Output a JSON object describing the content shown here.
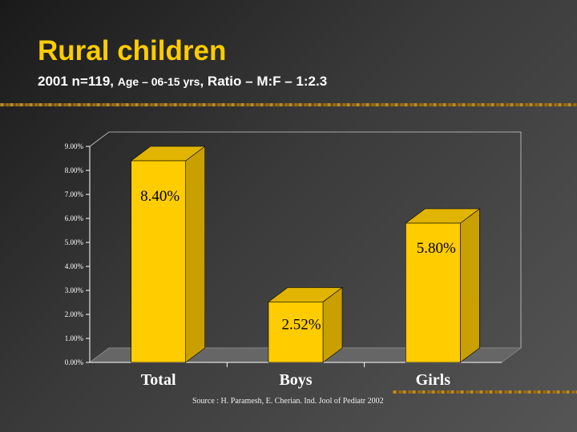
{
  "header": {
    "title": "Rural children",
    "subtitle_parts": [
      "2001 n=119, ",
      "Age – 06-15 yrs",
      ", Ratio – M:F – 1:2.3"
    ]
  },
  "colors": {
    "bar_front": "#ffcc00",
    "bar_side": "#c9a000",
    "bar_top": "#e0b400",
    "floor": "#666666",
    "axis": "#ffffff",
    "accent": "#ffcc00"
  },
  "chart_data": {
    "type": "bar",
    "categories": [
      "Total",
      "Boys",
      "Girls"
    ],
    "values": [
      8.4,
      2.52,
      5.8
    ],
    "data_labels": [
      "8.40%",
      "2.52%",
      "5.80%"
    ],
    "ylim": [
      0,
      9
    ],
    "yticks": [
      "0.00%",
      "1.00%",
      "2.00%",
      "3.00%",
      "4.00%",
      "5.00%",
      "6.00%",
      "7.00%",
      "8.00%",
      "9.00%"
    ],
    "title": "",
    "xlabel": "",
    "ylabel": "",
    "legend": "none",
    "grid": false
  },
  "footer": {
    "source": "Source : H. Paramesh, E. Cherian. Ind. Jool of Pediatr 2002"
  }
}
